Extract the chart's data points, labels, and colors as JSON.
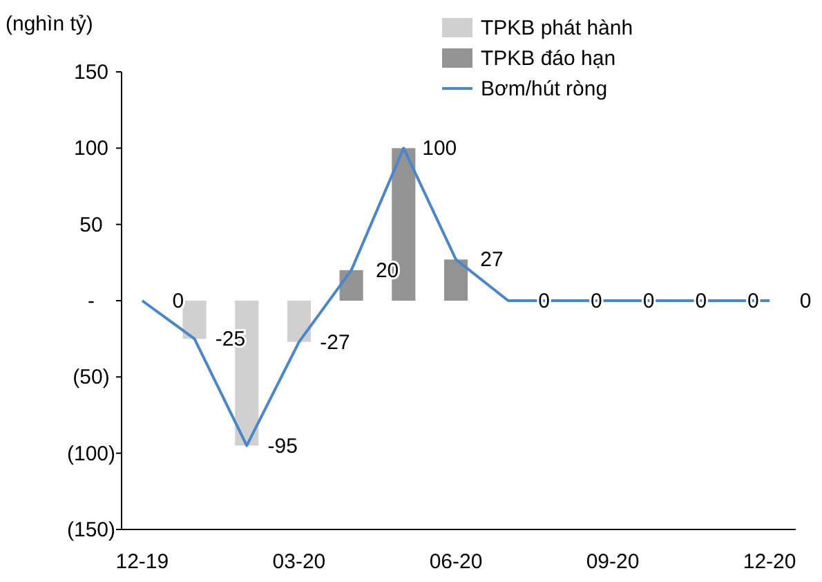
{
  "chart_data": {
    "type": "bar",
    "ylabel": "(nghìn tỷ)",
    "categories": [
      "12-19",
      null,
      null,
      "03-20",
      null,
      null,
      "06-20",
      null,
      null,
      "09-20",
      null,
      null,
      "12-20"
    ],
    "series": [
      {
        "name": "TPKB phát hành",
        "color": "#d0d0d0",
        "values": [
          null,
          -25,
          -95,
          -27,
          null,
          null,
          null,
          null,
          null,
          null,
          null,
          null,
          null
        ]
      },
      {
        "name": "TPKB đáo hạn",
        "color": "#939393",
        "values": [
          null,
          null,
          null,
          null,
          20,
          100,
          27,
          null,
          null,
          null,
          null,
          null,
          null
        ]
      },
      {
        "name": "Bơm/hút ròng",
        "type": "line",
        "color": "#4a86c8",
        "values": [
          0,
          -25,
          -95,
          -27,
          20,
          100,
          27,
          0,
          0,
          0,
          0,
          0,
          0
        ],
        "value_labels": [
          "0",
          "-25",
          "-95",
          "-27",
          "20",
          "100",
          "27",
          "0",
          "0",
          "0",
          "0",
          "0",
          "0"
        ]
      }
    ],
    "ylim": [
      -150,
      150
    ],
    "yticks": [
      {
        "value": -150,
        "label": "(150)"
      },
      {
        "value": -100,
        "label": "(100)"
      },
      {
        "value": -50,
        "label": "(50)"
      },
      {
        "value": 0,
        "label": "-"
      },
      50,
      100,
      150
    ],
    "grid": false,
    "legend": "top right",
    "marker": "none",
    "line_style": "solid"
  }
}
